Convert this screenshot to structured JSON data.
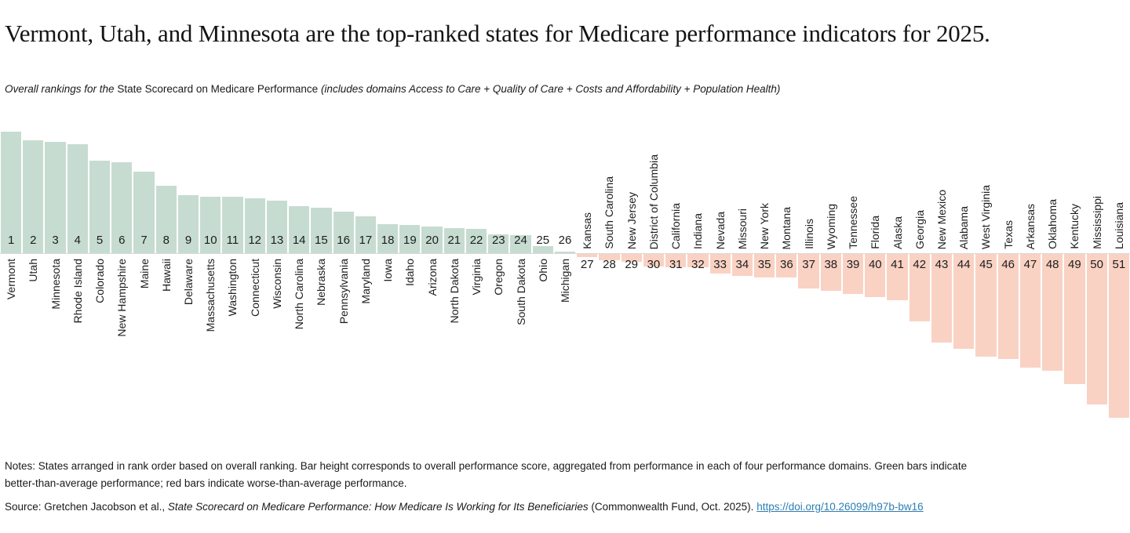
{
  "title": "Vermont, Utah, and Minnesota are the top-ranked states for Medicare performance indicators for 2025.",
  "subtitle": {
    "lead_italic": "Overall rankings for the ",
    "scorecard_name": "State Scorecard on Medicare Performance ",
    "domains_italic": "(includes domains Access to Care + Quality of Care + Costs and Affordability + Population Health)"
  },
  "colors": {
    "better": "#c7dcd1",
    "worse": "#f9d2c4",
    "axis": "#d9d9d9",
    "link": "#2d7eb3",
    "text": "#1a1a1a"
  },
  "chart_data": {
    "type": "bar",
    "subtype": "diverging-ranked-bars",
    "value_meaning": "overall Medicare performance score (bar length in px; no numeric axis shown); better = above axis (green), worse = below axis (red)",
    "legend": "Green bars = better-than-average performance; red bars = worse-than-average performance",
    "states": [
      {
        "rank": 1,
        "state": "Vermont",
        "group": "better",
        "len": 155
      },
      {
        "rank": 2,
        "state": "Utah",
        "group": "better",
        "len": 144
      },
      {
        "rank": 3,
        "state": "Minnesota",
        "group": "better",
        "len": 142
      },
      {
        "rank": 4,
        "state": "Rhode Island",
        "group": "better",
        "len": 139
      },
      {
        "rank": 5,
        "state": "Colorado",
        "group": "better",
        "len": 118
      },
      {
        "rank": 6,
        "state": "New Hampshire",
        "group": "better",
        "len": 116
      },
      {
        "rank": 7,
        "state": "Maine",
        "group": "better",
        "len": 104
      },
      {
        "rank": 8,
        "state": "Hawaii",
        "group": "better",
        "len": 86
      },
      {
        "rank": 9,
        "state": "Delaware",
        "group": "better",
        "len": 74
      },
      {
        "rank": 10,
        "state": "Massachusetts",
        "group": "better",
        "len": 72
      },
      {
        "rank": 11,
        "state": "Washington",
        "group": "better",
        "len": 72
      },
      {
        "rank": 12,
        "state": "Connecticut",
        "group": "better",
        "len": 70
      },
      {
        "rank": 13,
        "state": "Wisconsin",
        "group": "better",
        "len": 67
      },
      {
        "rank": 14,
        "state": "North Carolina",
        "group": "better",
        "len": 60
      },
      {
        "rank": 15,
        "state": "Nebraska",
        "group": "better",
        "len": 58
      },
      {
        "rank": 16,
        "state": "Pennsylvania",
        "group": "better",
        "len": 53
      },
      {
        "rank": 17,
        "state": "Maryland",
        "group": "better",
        "len": 47
      },
      {
        "rank": 18,
        "state": "Iowa",
        "group": "better",
        "len": 37
      },
      {
        "rank": 19,
        "state": "Idaho",
        "group": "better",
        "len": 36
      },
      {
        "rank": 20,
        "state": "Arizona",
        "group": "better",
        "len": 34
      },
      {
        "rank": 21,
        "state": "North Dakota",
        "group": "better",
        "len": 32
      },
      {
        "rank": 22,
        "state": "Virginia",
        "group": "better",
        "len": 31
      },
      {
        "rank": 23,
        "state": "Oregon",
        "group": "better",
        "len": 24
      },
      {
        "rank": 24,
        "state": "South Dakota",
        "group": "better",
        "len": 23
      },
      {
        "rank": 25,
        "state": "Ohio",
        "group": "better",
        "len": 9
      },
      {
        "rank": 26,
        "state": "Michigan",
        "group": "better",
        "len": 2
      },
      {
        "rank": 27,
        "state": "Kansas",
        "group": "worse",
        "len": 4
      },
      {
        "rank": 28,
        "state": "South Carolina",
        "group": "worse",
        "len": 8
      },
      {
        "rank": 29,
        "state": "New Jersey",
        "group": "worse",
        "len": 10
      },
      {
        "rank": 30,
        "state": "District of Columbia",
        "group": "worse",
        "len": 16
      },
      {
        "rank": 31,
        "state": "California",
        "group": "worse",
        "len": 17
      },
      {
        "rank": 32,
        "state": "Indiana",
        "group": "worse",
        "len": 17
      },
      {
        "rank": 33,
        "state": "Nevada",
        "group": "worse",
        "len": 25
      },
      {
        "rank": 34,
        "state": "Missouri",
        "group": "worse",
        "len": 28
      },
      {
        "rank": 35,
        "state": "New York",
        "group": "worse",
        "len": 30
      },
      {
        "rank": 36,
        "state": "Montana",
        "group": "worse",
        "len": 30
      },
      {
        "rank": 37,
        "state": "Illinois",
        "group": "worse",
        "len": 44
      },
      {
        "rank": 38,
        "state": "Wyoming",
        "group": "worse",
        "len": 47
      },
      {
        "rank": 39,
        "state": "Tennessee",
        "group": "worse",
        "len": 51
      },
      {
        "rank": 40,
        "state": "Florida",
        "group": "worse",
        "len": 55
      },
      {
        "rank": 41,
        "state": "Alaska",
        "group": "worse",
        "len": 59
      },
      {
        "rank": 42,
        "state": "Georgia",
        "group": "worse",
        "len": 86
      },
      {
        "rank": 43,
        "state": "New Mexico",
        "group": "worse",
        "len": 113
      },
      {
        "rank": 44,
        "state": "Alabama",
        "group": "worse",
        "len": 121
      },
      {
        "rank": 45,
        "state": "West Virginia",
        "group": "worse",
        "len": 131
      },
      {
        "rank": 46,
        "state": "Texas",
        "group": "worse",
        "len": 134
      },
      {
        "rank": 47,
        "state": "Arkansas",
        "group": "worse",
        "len": 145
      },
      {
        "rank": 48,
        "state": "Oklahoma",
        "group": "worse",
        "len": 149
      },
      {
        "rank": 49,
        "state": "Kentucky",
        "group": "worse",
        "len": 166
      },
      {
        "rank": 50,
        "state": "Mississippi",
        "group": "worse",
        "len": 192
      },
      {
        "rank": 51,
        "state": "Louisiana",
        "group": "worse",
        "len": 209
      }
    ]
  },
  "notes": "Notes: States arranged in rank order based on overall ranking. Bar height corresponds to overall performance score, aggregated from performance in each of four performance domains. Green bars indicate better-than-average performance; red bars indicate worse-than-average performance.",
  "source": {
    "prefix": "Source: Gretchen Jacobson et al., ",
    "report_title_italic": "State Scorecard on Medicare Performance: How Medicare Is Working for Its Beneficiaries",
    "suffix": " (Commonwealth Fund, Oct. 2025). ",
    "link_text": "https://doi.org/10.26099/h97b-bw16"
  }
}
